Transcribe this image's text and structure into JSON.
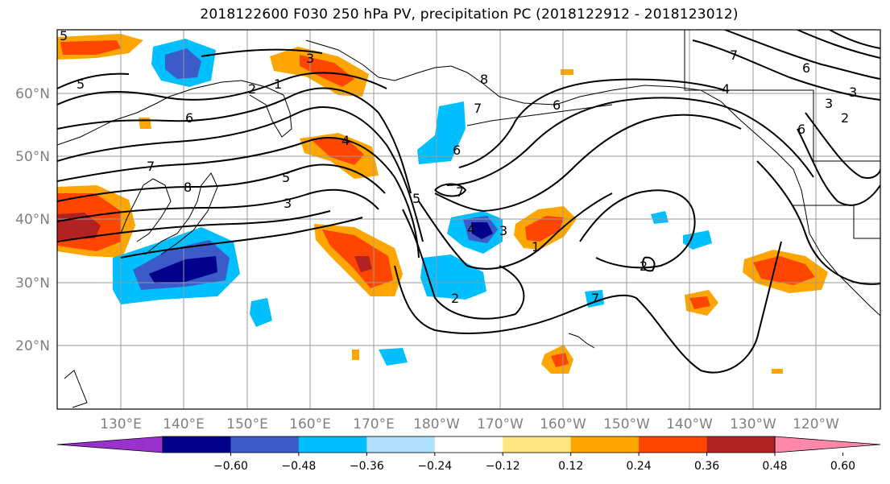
{
  "title": "2018122600 F030 250 hPa PV, precipitation PC (2018122912 - 2018123012)",
  "lat_labels": [
    "60°N",
    "50°N",
    "40°N",
    "30°N",
    "20°N"
  ],
  "lon_labels": [
    "130°E",
    "140°E",
    "150°E",
    "160°E",
    "170°E",
    "180°W",
    "170°W",
    "160°W",
    "150°W",
    "140°W",
    "130°W",
    "120°W"
  ],
  "colorbar": {
    "ticks": [
      "−0.60",
      "−0.48",
      "−0.36",
      "−0.24",
      "−0.12",
      "0.12",
      "0.24",
      "0.36",
      "0.48",
      "0.60"
    ],
    "colors": [
      "#9932cc",
      "#00008b",
      "#3a5bc8",
      "#00bfff",
      "#b0e0ff",
      "#ffffff",
      "#ffe680",
      "#ffa500",
      "#ff4500",
      "#b22222",
      "#ff88aa"
    ]
  },
  "contour_labels": [
    {
      "text": "5"
    },
    {
      "text": "6"
    },
    {
      "text": "7"
    },
    {
      "text": "8"
    },
    {
      "text": "3"
    },
    {
      "text": "4"
    },
    {
      "text": "5"
    },
    {
      "text": "3"
    },
    {
      "text": "2"
    },
    {
      "text": "1"
    },
    {
      "text": "6"
    },
    {
      "text": "7"
    },
    {
      "text": "8"
    },
    {
      "text": "7"
    },
    {
      "text": "6"
    },
    {
      "text": "5"
    },
    {
      "text": "4"
    },
    {
      "text": "3"
    },
    {
      "text": "2"
    },
    {
      "text": "1"
    },
    {
      "text": "2"
    },
    {
      "text": "3"
    },
    {
      "text": "4"
    },
    {
      "text": "6"
    },
    {
      "text": "7"
    },
    {
      "text": "2"
    },
    {
      "text": "3"
    },
    {
      "text": "6"
    },
    {
      "text": "7"
    },
    {
      "text": "5"
    }
  ]
}
